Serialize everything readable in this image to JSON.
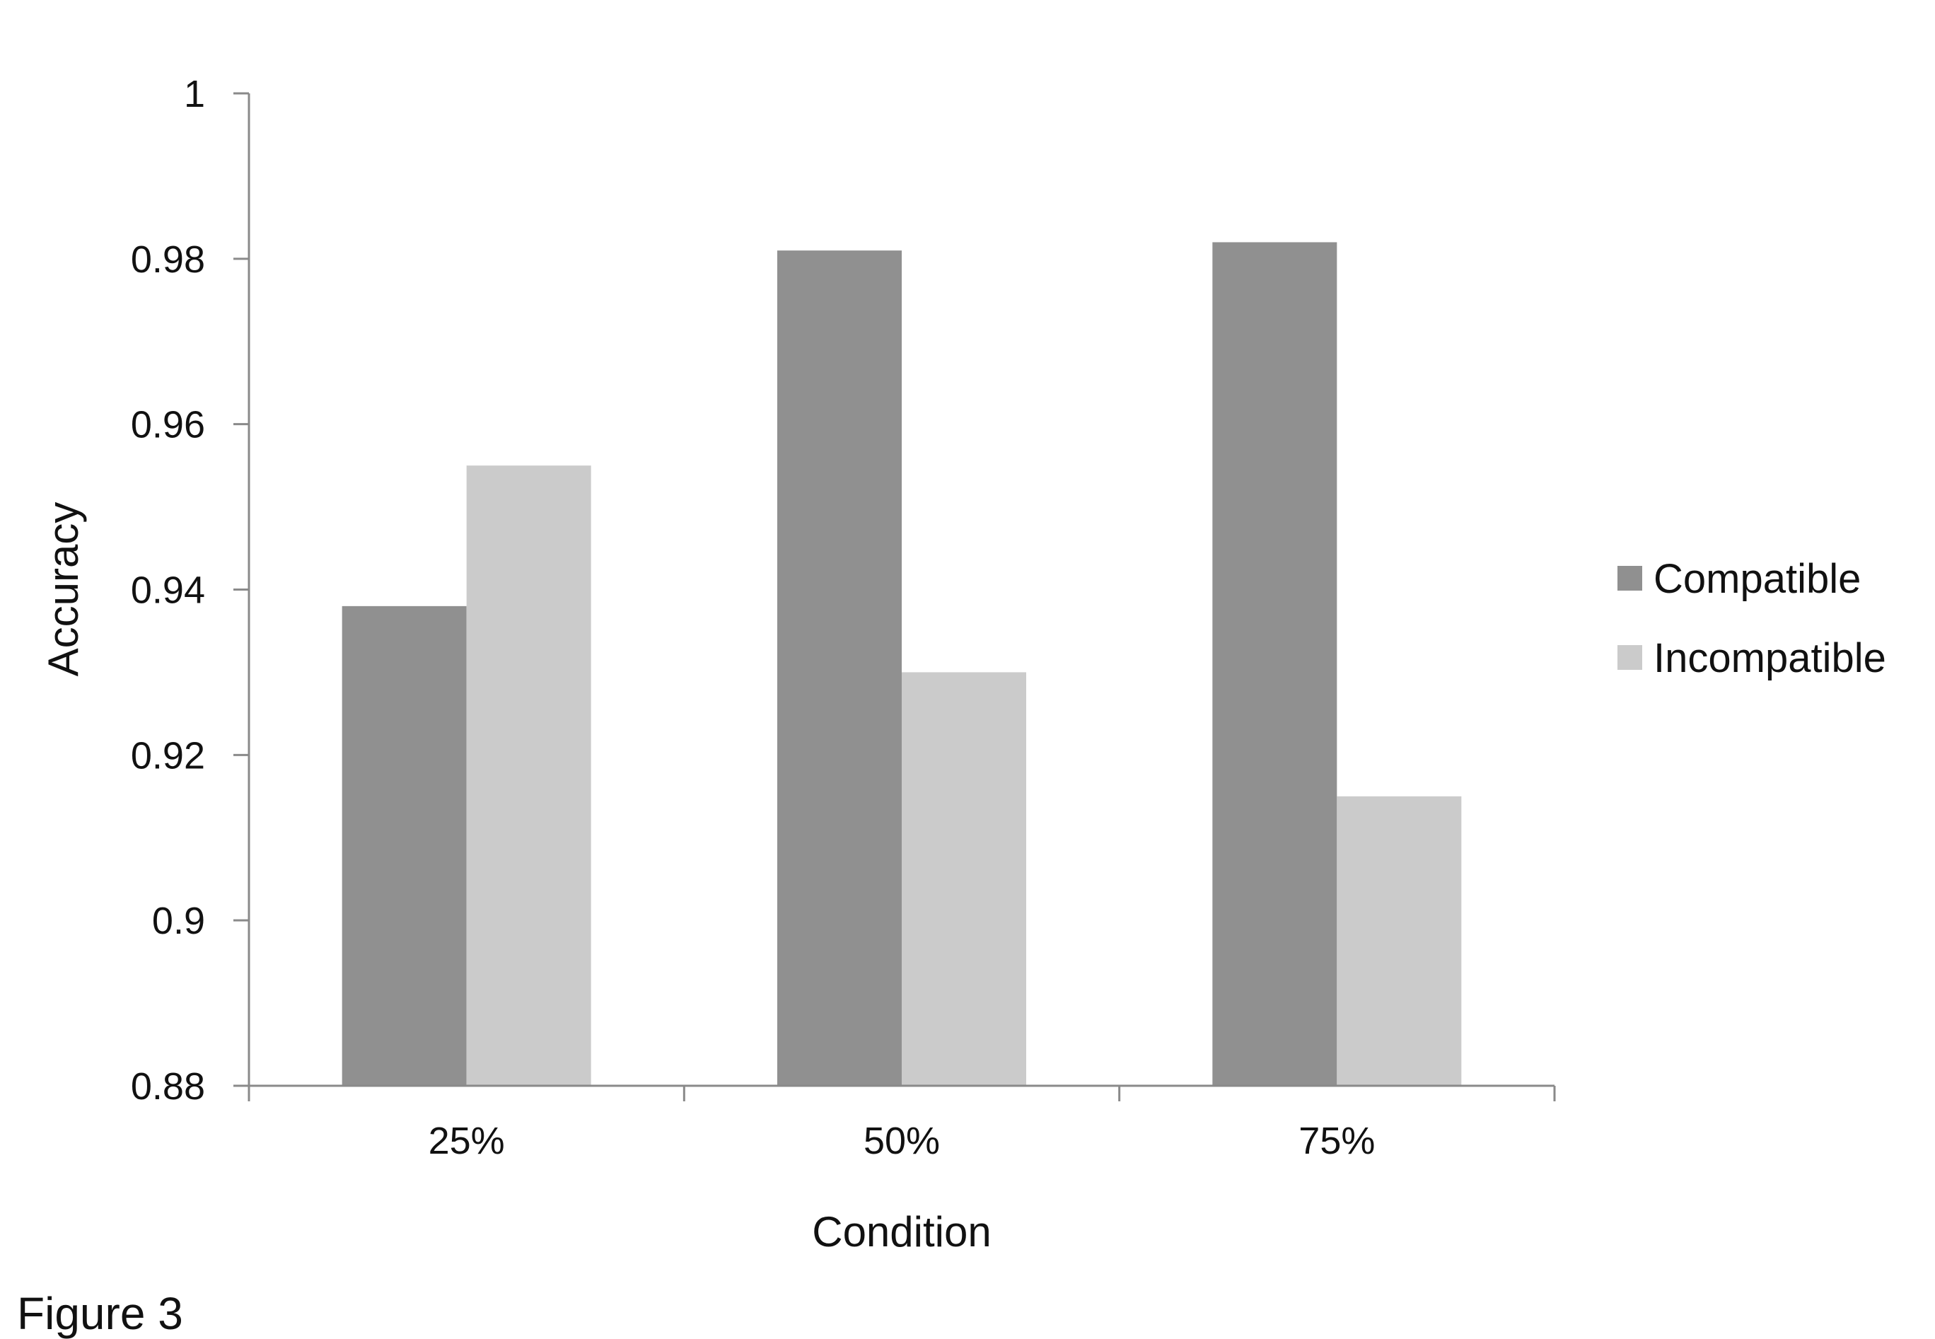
{
  "chart_data": {
    "type": "bar",
    "categories": [
      "25%",
      "50%",
      "75%"
    ],
    "series": [
      {
        "name": "Compatible",
        "values": [
          0.938,
          0.981,
          0.982
        ],
        "color": "#909090"
      },
      {
        "name": "Incompatible",
        "values": [
          0.955,
          0.93,
          0.915
        ],
        "color": "#cbcbcb"
      }
    ],
    "xlabel": "Condition",
    "ylabel": "Accuracy",
    "ylim": [
      0.88,
      1.0
    ],
    "yticks": [
      "0.88",
      "0.9",
      "0.92",
      "0.94",
      "0.96",
      "0.98",
      "1"
    ],
    "grid": false,
    "legend_position": "right"
  },
  "figure_label": "Figure 3"
}
